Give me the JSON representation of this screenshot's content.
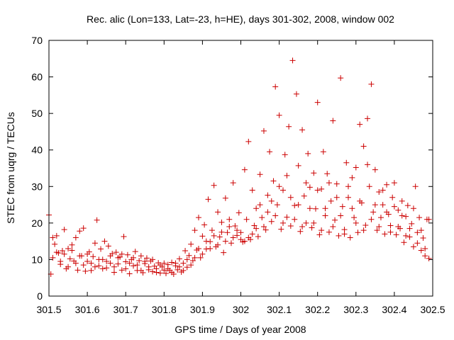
{
  "chart_data": {
    "type": "scatter",
    "title": "Rec. alic (Lon=133, Lat=-23, h=HE), days 301-302, 2008, window 002",
    "xlabel": "GPS time / Days of year 2008",
    "ylabel": "STEC from uqrg / TECUs",
    "xlim": [
      301.5,
      302.5
    ],
    "ylim": [
      0,
      70
    ],
    "xticks": [
      301.5,
      301.6,
      301.7,
      301.8,
      301.9,
      302.0,
      302.1,
      302.2,
      302.3,
      302.4,
      302.5
    ],
    "xtick_labels": [
      "301.5",
      "301.6",
      "301.7",
      "301.8",
      "301.9",
      "302",
      "302.1",
      "302.2",
      "302.3",
      "302.4",
      "302.5"
    ],
    "yticks": [
      0,
      10,
      20,
      30,
      40,
      50,
      60,
      70
    ],
    "ytick_labels": [
      "0",
      "10",
      "20",
      "30",
      "40",
      "50",
      "60",
      "70"
    ],
    "marker": "+",
    "color": "#cc0000",
    "series": [
      {
        "name": "STEC",
        "points": [
          [
            301.5,
            22.2
          ],
          [
            301.505,
            6.0
          ],
          [
            301.51,
            10.5
          ],
          [
            301.515,
            14.2
          ],
          [
            301.52,
            16.5
          ],
          [
            301.525,
            11.8
          ],
          [
            301.53,
            8.7
          ],
          [
            301.535,
            12.4
          ],
          [
            301.54,
            18.2
          ],
          [
            301.545,
            7.5
          ],
          [
            301.55,
            13.0
          ],
          [
            301.555,
            10.2
          ],
          [
            301.56,
            14.0
          ],
          [
            301.565,
            9.6
          ],
          [
            301.57,
            16.0
          ],
          [
            301.575,
            7.1
          ],
          [
            301.58,
            17.8
          ],
          [
            301.585,
            11.0
          ],
          [
            301.59,
            18.6
          ],
          [
            301.595,
            6.8
          ],
          [
            301.6,
            9.5
          ],
          [
            301.605,
            12.1
          ],
          [
            301.61,
            7.0
          ],
          [
            301.615,
            10.8
          ],
          [
            301.62,
            14.5
          ],
          [
            301.625,
            20.8
          ],
          [
            301.63,
            8.3
          ],
          [
            301.635,
            12.9
          ],
          [
            301.64,
            10.0
          ],
          [
            301.645,
            15.0
          ],
          [
            301.65,
            7.7
          ],
          [
            301.655,
            13.7
          ],
          [
            301.66,
            9.0
          ],
          [
            301.665,
            11.6
          ],
          [
            301.67,
            6.5
          ],
          [
            301.675,
            12.0
          ],
          [
            301.68,
            8.8
          ],
          [
            301.685,
            10.7
          ],
          [
            301.69,
            7.1
          ],
          [
            301.695,
            16.3
          ],
          [
            301.7,
            9.4
          ],
          [
            301.705,
            11.3
          ],
          [
            301.71,
            6.1
          ],
          [
            301.715,
            10.0
          ],
          [
            301.72,
            8.3
          ],
          [
            301.725,
            12.2
          ],
          [
            301.73,
            7.0
          ],
          [
            301.735,
            9.7
          ],
          [
            301.74,
            11.0
          ],
          [
            301.745,
            6.4
          ],
          [
            301.75,
            8.9
          ],
          [
            301.755,
            10.4
          ],
          [
            301.76,
            7.2
          ],
          [
            301.765,
            9.6
          ],
          [
            301.77,
            6.7
          ],
          [
            301.775,
            8.2
          ],
          [
            301.78,
            7.5
          ],
          [
            301.785,
            9.1
          ],
          [
            301.79,
            6.3
          ],
          [
            301.795,
            8.0
          ],
          [
            301.8,
            7.1
          ],
          [
            301.805,
            6.2
          ],
          [
            301.81,
            8.6
          ],
          [
            301.815,
            7.0
          ],
          [
            301.82,
            9.2
          ],
          [
            301.825,
            6.0
          ],
          [
            301.83,
            8.3
          ],
          [
            301.835,
            7.2
          ],
          [
            301.84,
            10.2
          ],
          [
            301.845,
            6.6
          ],
          [
            301.85,
            9.0
          ],
          [
            301.855,
            12.4
          ],
          [
            301.86,
            7.9
          ],
          [
            301.865,
            11.1
          ],
          [
            301.87,
            14.2
          ],
          [
            301.875,
            9.7
          ],
          [
            301.88,
            18.0
          ],
          [
            301.885,
            12.6
          ],
          [
            301.89,
            21.5
          ],
          [
            301.895,
            10.5
          ],
          [
            301.9,
            16.4
          ],
          [
            301.905,
            19.5
          ],
          [
            301.91,
            12.9
          ],
          [
            301.915,
            26.5
          ],
          [
            301.92,
            14.9
          ],
          [
            301.925,
            18.0
          ],
          [
            301.93,
            30.3
          ],
          [
            301.935,
            13.5
          ],
          [
            301.94,
            23.0
          ],
          [
            301.945,
            16.2
          ],
          [
            301.95,
            20.2
          ],
          [
            301.955,
            11.9
          ],
          [
            301.96,
            26.8
          ],
          [
            301.965,
            17.4
          ],
          [
            301.97,
            21.0
          ],
          [
            301.975,
            14.5
          ],
          [
            301.98,
            31.0
          ],
          [
            301.985,
            19.2
          ],
          [
            301.99,
            16.6
          ],
          [
            301.995,
            22.8
          ],
          [
            302.0,
            17.4
          ],
          [
            302.005,
            14.8
          ],
          [
            302.01,
            34.6
          ],
          [
            302.015,
            21.0
          ],
          [
            302.02,
            42.3
          ],
          [
            302.025,
            15.5
          ],
          [
            302.03,
            29.0
          ],
          [
            302.035,
            19.3
          ],
          [
            302.04,
            24.0
          ],
          [
            302.045,
            16.3
          ],
          [
            302.05,
            33.3
          ],
          [
            302.055,
            21.5
          ],
          [
            302.06,
            45.2
          ],
          [
            302.065,
            18.1
          ],
          [
            302.07,
            27.6
          ],
          [
            302.075,
            39.5
          ],
          [
            302.08,
            20.4
          ],
          [
            302.085,
            31.5
          ],
          [
            302.09,
            57.3
          ],
          [
            302.095,
            25.0
          ],
          [
            302.1,
            49.5
          ],
          [
            302.105,
            18.3
          ],
          [
            302.11,
            29.0
          ],
          [
            302.115,
            38.7
          ],
          [
            302.12,
            21.6
          ],
          [
            302.125,
            46.4
          ],
          [
            302.13,
            19.2
          ],
          [
            302.135,
            64.5
          ],
          [
            302.14,
            24.8
          ],
          [
            302.145,
            55.3
          ],
          [
            302.15,
            35.7
          ],
          [
            302.155,
            17.7
          ],
          [
            302.16,
            45.5
          ],
          [
            302.165,
            27.4
          ],
          [
            302.17,
            20.0
          ],
          [
            302.175,
            39.0
          ],
          [
            302.18,
            29.8
          ],
          [
            302.185,
            18.7
          ],
          [
            302.19,
            33.7
          ],
          [
            302.195,
            23.9
          ],
          [
            302.2,
            53.0
          ],
          [
            302.205,
            16.8
          ],
          [
            302.21,
            29.3
          ],
          [
            302.215,
            39.5
          ],
          [
            302.22,
            22.0
          ],
          [
            302.225,
            33.5
          ],
          [
            302.23,
            17.5
          ],
          [
            302.235,
            26.0
          ],
          [
            302.24,
            48.0
          ],
          [
            302.245,
            20.8
          ],
          [
            302.25,
            30.7
          ],
          [
            302.255,
            16.5
          ],
          [
            302.26,
            59.7
          ],
          [
            302.265,
            24.5
          ],
          [
            302.27,
            18.2
          ],
          [
            302.275,
            36.5
          ],
          [
            302.28,
            27.0
          ],
          [
            302.285,
            16.0
          ],
          [
            302.29,
            32.4
          ],
          [
            302.295,
            21.5
          ],
          [
            302.3,
            35.2
          ],
          [
            302.305,
            17.4
          ],
          [
            302.31,
            47.0
          ],
          [
            302.315,
            25.5
          ],
          [
            302.32,
            41.0
          ],
          [
            302.325,
            19.4
          ],
          [
            302.33,
            48.6
          ],
          [
            302.335,
            30.0
          ],
          [
            302.34,
            58.0
          ],
          [
            302.345,
            23.0
          ],
          [
            302.35,
            34.6
          ],
          [
            302.355,
            18.0
          ],
          [
            302.36,
            28.5
          ],
          [
            302.365,
            21.5
          ],
          [
            302.37,
            25.0
          ],
          [
            302.375,
            17.0
          ],
          [
            302.38,
            30.5
          ],
          [
            302.385,
            22.4
          ],
          [
            302.39,
            19.3
          ],
          [
            302.395,
            27.0
          ],
          [
            302.4,
            31.0
          ],
          [
            302.405,
            16.8
          ],
          [
            302.41,
            23.5
          ],
          [
            302.415,
            18.5
          ],
          [
            302.42,
            26.0
          ],
          [
            302.425,
            14.7
          ],
          [
            302.43,
            21.8
          ],
          [
            302.435,
            24.8
          ],
          [
            302.44,
            16.2
          ],
          [
            302.445,
            19.8
          ],
          [
            302.45,
            13.5
          ],
          [
            302.455,
            30.0
          ],
          [
            302.46,
            17.4
          ],
          [
            302.465,
            21.5
          ],
          [
            302.47,
            12.5
          ],
          [
            302.475,
            15.9
          ],
          [
            302.48,
            11.0
          ],
          [
            302.485,
            21.0
          ],
          [
            302.49,
            10.3
          ],
          [
            301.51,
            16.0
          ],
          [
            301.52,
            12.0
          ],
          [
            301.53,
            9.5
          ],
          [
            301.54,
            11.5
          ],
          [
            301.55,
            8.0
          ],
          [
            301.56,
            12.5
          ],
          [
            301.57,
            9.0
          ],
          [
            301.58,
            11.0
          ],
          [
            301.59,
            8.5
          ],
          [
            301.6,
            11.5
          ],
          [
            301.61,
            9.0
          ],
          [
            301.62,
            8.0
          ],
          [
            301.63,
            10.0
          ],
          [
            301.64,
            7.5
          ],
          [
            301.65,
            9.5
          ],
          [
            301.66,
            11.0
          ],
          [
            301.67,
            8.0
          ],
          [
            301.68,
            10.5
          ],
          [
            301.69,
            11.5
          ],
          [
            301.7,
            7.5
          ],
          [
            301.71,
            9.0
          ],
          [
            301.72,
            10.5
          ],
          [
            301.73,
            8.5
          ],
          [
            301.74,
            7.0
          ],
          [
            301.75,
            9.5
          ],
          [
            301.76,
            8.0
          ],
          [
            301.77,
            10.0
          ],
          [
            301.78,
            6.5
          ],
          [
            301.79,
            8.5
          ],
          [
            301.8,
            9.0
          ],
          [
            301.81,
            7.5
          ],
          [
            301.82,
            6.5
          ],
          [
            301.83,
            9.0
          ],
          [
            301.84,
            8.0
          ],
          [
            301.85,
            7.0
          ],
          [
            301.86,
            10.0
          ],
          [
            301.87,
            8.5
          ],
          [
            301.88,
            10.5
          ],
          [
            301.89,
            13.0
          ],
          [
            301.9,
            11.5
          ],
          [
            301.91,
            15.0
          ],
          [
            301.92,
            13.0
          ],
          [
            301.93,
            16.5
          ],
          [
            301.94,
            14.0
          ],
          [
            301.95,
            17.5
          ],
          [
            301.96,
            15.0
          ],
          [
            301.97,
            19.0
          ],
          [
            301.98,
            16.0
          ],
          [
            301.99,
            18.0
          ],
          [
            302.0,
            15.5
          ],
          [
            302.01,
            15.0
          ],
          [
            302.02,
            16.0
          ],
          [
            302.03,
            17.0
          ],
          [
            302.04,
            18.5
          ],
          [
            302.05,
            25.0
          ],
          [
            302.06,
            19.0
          ],
          [
            302.07,
            23.0
          ],
          [
            302.08,
            26.0
          ],
          [
            302.09,
            22.0
          ],
          [
            302.1,
            30.0
          ],
          [
            302.11,
            20.0
          ],
          [
            302.12,
            33.0
          ],
          [
            302.13,
            27.0
          ],
          [
            302.14,
            21.0
          ],
          [
            302.15,
            25.0
          ],
          [
            302.16,
            19.0
          ],
          [
            302.17,
            31.0
          ],
          [
            302.18,
            24.0
          ],
          [
            302.19,
            20.0
          ],
          [
            302.2,
            29.0
          ],
          [
            302.21,
            18.0
          ],
          [
            302.22,
            24.0
          ],
          [
            302.23,
            31.0
          ],
          [
            302.24,
            19.0
          ],
          [
            302.25,
            27.0
          ],
          [
            302.26,
            22.0
          ],
          [
            302.27,
            17.0
          ],
          [
            302.28,
            30.0
          ],
          [
            302.29,
            24.0
          ],
          [
            302.3,
            20.0
          ],
          [
            302.31,
            26.0
          ],
          [
            302.32,
            18.0
          ],
          [
            302.33,
            36.0
          ],
          [
            302.34,
            21.0
          ],
          [
            302.35,
            25.0
          ],
          [
            302.36,
            19.0
          ],
          [
            302.37,
            29.0
          ],
          [
            302.38,
            23.0
          ],
          [
            302.39,
            17.5
          ],
          [
            302.4,
            24.5
          ],
          [
            302.41,
            19.0
          ],
          [
            302.42,
            22.0
          ],
          [
            302.43,
            16.5
          ],
          [
            302.44,
            18.5
          ],
          [
            302.45,
            24.0
          ],
          [
            302.46,
            14.5
          ],
          [
            302.47,
            18.0
          ],
          [
            302.48,
            13.0
          ],
          [
            302.49,
            21.0
          ]
        ]
      }
    ]
  }
}
